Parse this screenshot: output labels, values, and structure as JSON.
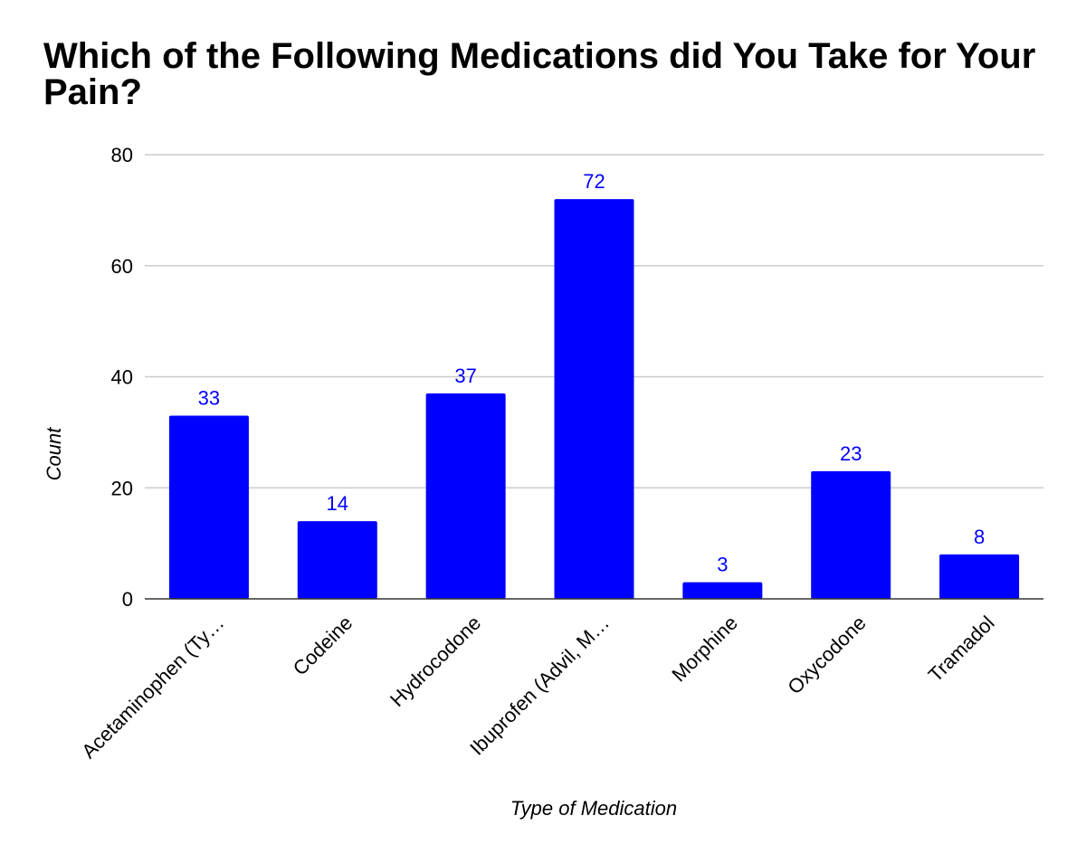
{
  "chart_data": {
    "type": "bar",
    "title": "Which of the Following Medications did You Take for Your Pain?",
    "xlabel": "Type of Medication",
    "ylabel": "Count",
    "categories": [
      "Acetaminophen (Ty…",
      "Codeine",
      "Hydrocodone",
      "Ibuprofen (Advil, M…",
      "Morphine",
      "Oxycodone",
      "Tramadol"
    ],
    "values": [
      33,
      14,
      37,
      72,
      3,
      23,
      8
    ],
    "ylim": [
      0,
      80
    ],
    "yticks": [
      0,
      20,
      40,
      60,
      80
    ],
    "grid": true,
    "data_labels": true,
    "bar_color": "#0000ff",
    "label_color": "#0000ff"
  }
}
